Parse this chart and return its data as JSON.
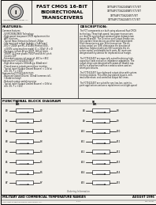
{
  "bg_color": "#e8e5e0",
  "page_bg": "#f2f0eb",
  "header": {
    "product_title": "FAST CMOS 16-BIT\nBIDIRECTIONAL\nTRANSCEIVERS",
    "part_numbers": [
      "IDT54FCT162245AT/CT/ET",
      "IDT54FCT162245BT/CT/ET",
      "IDT54FCT162245T/ET",
      "IDT54FCT162245T/CT/ET"
    ]
  },
  "features_title": "FEATURES:",
  "features_lines": [
    "Common features:",
    " - 5V MICRON CMOS Technology",
    " - High-speed, low-power CMOS replacement for",
    "   ABT functions",
    " - Typical fmax (Output-to-Output): 250ps",
    " - Low input and output leakage < 5uA (max)",
    " - ESD > 2000V per MIL-STD-883 Method 3015,",
    "   >2000V using machine model (C = 200pF, R = 0)",
    " - Packages include 48 pin SSOP, 160 mil pitch",
    "   TSSOP, 14.0 mm plastic TVSOP and 56 mil pitch",
    "   Ceramic DIP",
    " - Extended commercial range of -40C to +85C",
    "Features for FCT162245T/CT/ET:",
    " - High drive outputs (300mA typ, 60mA min)",
    " - Flow-of-source outputs permit bus insertion",
    " - Typical input (Output Ground Bounce) < 1.0V at",
    "   min. 5V, T = +25C",
    "Features for FCT162245T/CT/ET:",
    " - Balanced Output Drivers: (25mA (commercial),",
    "   (15mA (military))",
    " - Reduced system switching noise",
    " - Typical input (Output Ground Bounce) < 0.8V at",
    "   min. 5V, T = +25C"
  ],
  "desc_title": "DESCRIPTION:",
  "desc_lines": [
    "The FCT components are built using advanced Fast CMOS",
    "technology. These high-speed, low-power transceivers",
    "are ideal for synchronous communication between two",
    "busses (A and B). The Direction and Output Enable con-",
    "trols operate these devices as either two independent",
    "8-bit transceivers or one 16-bit transceiver. The dir-",
    "ection control pin (DIR) determines the direction of",
    "data flow. Output enable pin (OE) overrides the dir-",
    "ection control and disables both ports. All inputs are",
    "designed with hysteresis for improved noise margin.",
    "",
    "The FCT162245T are especially suited for driving high-",
    "capacitive loads and active impedance adaptation. The",
    "output drivers are designed with power-off disable cap-",
    "ability to allow bus insertion scenarios when used as",
    "totem-pole drivers.",
    "",
    "The FCT162245T have balanced output drive with system",
    "limiting resistors. This offers low ground bounce, min-",
    "imal undershoot, and controlled output fall times.",
    "",
    "The FCT162245T are suited for any low-loss, point-to-",
    "point applications and are a replacement on a light-speed"
  ],
  "diagram_title": "FUNCTIONAL BLOCK DIAGRAM",
  "footer_left": "MILITARY AND COMMERCIAL TEMPERATURE RANGES",
  "footer_right": "AUGUST 1996",
  "footer_copy": "Copyright Integrated Device Technology, Inc.",
  "footer_mid": "5 14",
  "footer_dsc": "DSC-00001"
}
